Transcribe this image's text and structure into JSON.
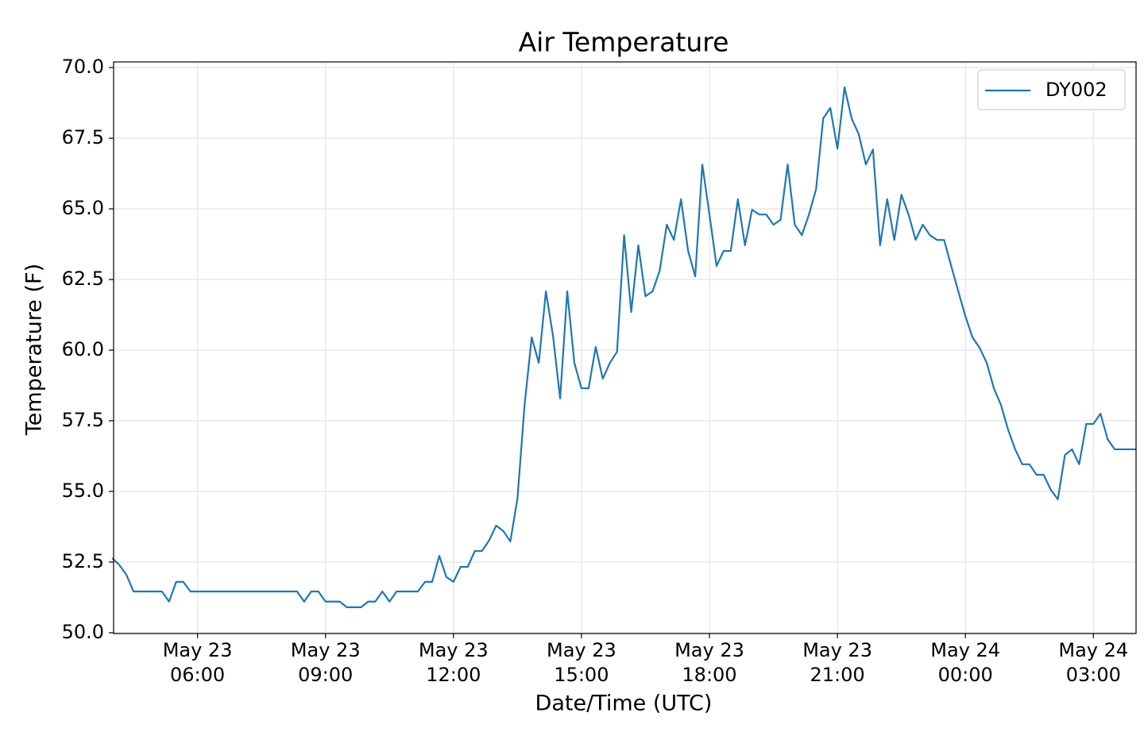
{
  "chart_data": {
    "type": "line",
    "title": "Air Temperature",
    "xlabel": "Date/Time (UTC)",
    "ylabel": "Temperature (F)",
    "x": [
      "May 23 04:00",
      "May 23 04:10",
      "May 23 04:20",
      "May 23 04:30",
      "May 23 04:40",
      "May 23 04:50",
      "May 23 05:00",
      "May 23 05:10",
      "May 23 05:20",
      "May 23 05:30",
      "May 23 05:40",
      "May 23 05:50",
      "May 23 06:00",
      "May 23 06:10",
      "May 23 06:20",
      "May 23 06:30",
      "May 23 06:40",
      "May 23 06:50",
      "May 23 07:00",
      "May 23 07:10",
      "May 23 07:20",
      "May 23 07:30",
      "May 23 07:40",
      "May 23 07:50",
      "May 23 08:00",
      "May 23 08:10",
      "May 23 08:20",
      "May 23 08:30",
      "May 23 08:40",
      "May 23 08:50",
      "May 23 09:00",
      "May 23 09:10",
      "May 23 09:20",
      "May 23 09:30",
      "May 23 09:40",
      "May 23 09:50",
      "May 23 10:00",
      "May 23 10:10",
      "May 23 10:20",
      "May 23 10:30",
      "May 23 10:40",
      "May 23 10:50",
      "May 23 11:00",
      "May 23 11:10",
      "May 23 11:20",
      "May 23 11:30",
      "May 23 11:40",
      "May 23 11:50",
      "May 23 12:00",
      "May 23 12:10",
      "May 23 12:20",
      "May 23 12:30",
      "May 23 12:40",
      "May 23 12:50",
      "May 23 13:00",
      "May 23 13:10",
      "May 23 13:20",
      "May 23 13:30",
      "May 23 13:40",
      "May 23 13:50",
      "May 23 14:00",
      "May 23 14:10",
      "May 23 14:20",
      "May 23 14:30",
      "May 23 14:40",
      "May 23 14:50",
      "May 23 15:00",
      "May 23 15:10",
      "May 23 15:20",
      "May 23 15:30",
      "May 23 15:40",
      "May 23 15:50",
      "May 23 16:00",
      "May 23 16:10",
      "May 23 16:20",
      "May 23 16:30",
      "May 23 16:40",
      "May 23 16:50",
      "May 23 17:00",
      "May 23 17:10",
      "May 23 17:20",
      "May 23 17:30",
      "May 23 17:40",
      "May 23 17:50",
      "May 23 18:00",
      "May 23 18:10",
      "May 23 18:20",
      "May 23 18:30",
      "May 23 18:40",
      "May 23 18:50",
      "May 23 19:00",
      "May 23 19:10",
      "May 23 19:20",
      "May 23 19:30",
      "May 23 19:40",
      "May 23 19:50",
      "May 23 20:00",
      "May 23 20:10",
      "May 23 20:20",
      "May 23 20:30",
      "May 23 20:40",
      "May 23 20:50",
      "May 23 21:00",
      "May 23 21:10",
      "May 23 21:20",
      "May 23 21:30",
      "May 23 21:40",
      "May 23 21:50",
      "May 23 22:00",
      "May 23 22:10",
      "May 23 22:20",
      "May 23 22:30",
      "May 23 22:40",
      "May 23 22:50",
      "May 23 23:00",
      "May 23 23:10",
      "May 23 23:20",
      "May 23 23:30",
      "May 23 23:40",
      "May 23 23:50",
      "May 24 00:00",
      "May 24 00:10",
      "May 24 00:20",
      "May 24 00:30",
      "May 24 00:40",
      "May 24 00:50",
      "May 24 01:00",
      "May 24 01:10",
      "May 24 01:20",
      "May 24 01:30",
      "May 24 01:40",
      "May 24 01:50",
      "May 24 02:00",
      "May 24 02:10",
      "May 24 02:20",
      "May 24 02:30",
      "May 24 02:40",
      "May 24 02:50",
      "May 24 03:00",
      "May 24 03:10",
      "May 24 03:20",
      "May 24 03:30",
      "May 24 03:40",
      "May 24 03:50",
      "May 24 04:00"
    ],
    "series": [
      {
        "name": "DY002",
        "color": "#1f77b4",
        "values": [
          52.64,
          52.4,
          52.05,
          51.46,
          51.46,
          51.46,
          51.46,
          51.46,
          51.1,
          51.8,
          51.8,
          51.46,
          51.46,
          51.46,
          51.46,
          51.46,
          51.46,
          51.46,
          51.46,
          51.46,
          51.46,
          51.46,
          51.46,
          51.46,
          51.46,
          51.46,
          51.46,
          51.1,
          51.46,
          51.46,
          51.1,
          51.1,
          51.1,
          50.9,
          50.9,
          50.9,
          51.1,
          51.1,
          51.46,
          51.1,
          51.46,
          51.46,
          51.46,
          51.46,
          51.8,
          51.8,
          52.72,
          51.97,
          51.8,
          52.33,
          52.33,
          52.89,
          52.89,
          53.26,
          53.79,
          53.6,
          53.23,
          54.75,
          58.06,
          60.45,
          59.55,
          62.08,
          60.5,
          58.29,
          62.08,
          59.55,
          58.65,
          58.65,
          60.11,
          58.99,
          59.55,
          59.94,
          64.07,
          61.35,
          63.71,
          61.91,
          62.08,
          62.81,
          64.44,
          63.9,
          65.34,
          63.51,
          62.61,
          66.57,
          64.8,
          62.98,
          63.51,
          63.51,
          65.34,
          63.71,
          64.97,
          64.8,
          64.8,
          64.44,
          64.61,
          66.57,
          64.44,
          64.07,
          64.8,
          65.7,
          68.2,
          68.57,
          67.13,
          69.3,
          68.2,
          67.64,
          66.57,
          67.1,
          63.71,
          65.34,
          63.9,
          65.5,
          64.8,
          63.9,
          64.44,
          64.07,
          63.9,
          63.9,
          62.98,
          62.08,
          61.2,
          60.45,
          60.08,
          59.55,
          58.65,
          58.06,
          57.19,
          56.49,
          55.96,
          55.96,
          55.59,
          55.59,
          55.06,
          54.72,
          56.29,
          56.49,
          55.96,
          57.39,
          57.39,
          57.75,
          56.85,
          56.49,
          56.49,
          56.49,
          56.49
        ]
      }
    ],
    "xlim": [
      "May 23 04:02",
      "May 24 04:00"
    ],
    "xticks": [
      {
        "value": "May 23 06:00",
        "label": "May 23\n06:00"
      },
      {
        "value": "May 23 09:00",
        "label": "May 23\n09:00"
      },
      {
        "value": "May 23 12:00",
        "label": "May 23\n12:00"
      },
      {
        "value": "May 23 15:00",
        "label": "May 23\n15:00"
      },
      {
        "value": "May 23 18:00",
        "label": "May 23\n18:00"
      },
      {
        "value": "May 23 21:00",
        "label": "May 23\n21:00"
      },
      {
        "value": "May 24 00:00",
        "label": "May 24\n00:00"
      },
      {
        "value": "May 24 03:00",
        "label": "May 24\n03:00"
      }
    ],
    "ylim": [
      49.97,
      70.2
    ],
    "yticks": [
      {
        "value": 50,
        "label": "50.0"
      },
      {
        "value": 52.5,
        "label": "52.5"
      },
      {
        "value": 55,
        "label": "55.0"
      },
      {
        "value": 57.5,
        "label": "57.5"
      },
      {
        "value": 60,
        "label": "60.0"
      },
      {
        "value": 62.5,
        "label": "62.5"
      },
      {
        "value": 65,
        "label": "65.0"
      },
      {
        "value": 67.5,
        "label": "67.5"
      },
      {
        "value": 70,
        "label": "70.0"
      }
    ],
    "grid": true,
    "legend": "upper right"
  }
}
